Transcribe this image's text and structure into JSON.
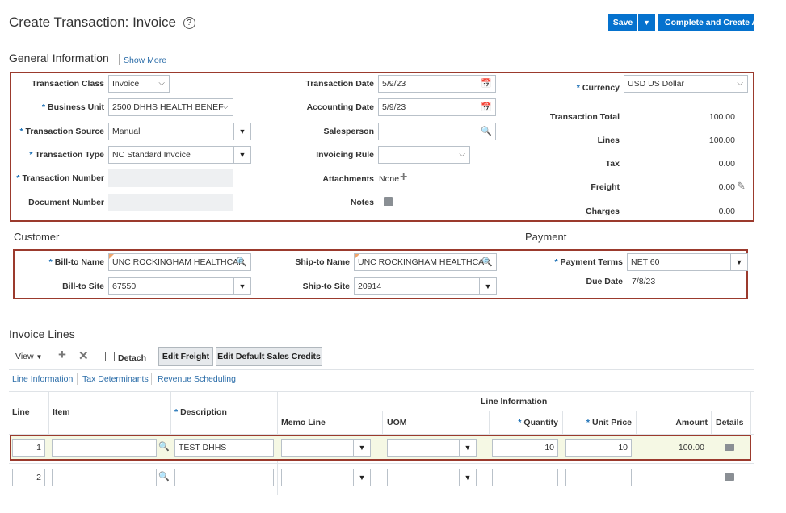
{
  "header": {
    "title": "Create Transaction: Invoice",
    "help_icon": "help-circle-icon",
    "save_label": "Save",
    "save_menu_icon": "caret-down-icon",
    "complete_label": "Complete and Create An"
  },
  "general": {
    "title": "General Information",
    "show_more": "Show More",
    "transaction_class_label": "Transaction Class",
    "transaction_class_value": "Invoice",
    "business_unit_label": "Business Unit",
    "business_unit_value": "2500 DHHS HEALTH BENEF",
    "transaction_source_label": "Transaction Source",
    "transaction_source_value": "Manual",
    "transaction_type_label": "Transaction Type",
    "transaction_type_value": "NC Standard Invoice",
    "transaction_number_label": "Transaction Number",
    "document_number_label": "Document Number",
    "transaction_date_label": "Transaction Date",
    "transaction_date_value": "5/9/23",
    "accounting_date_label": "Accounting Date",
    "accounting_date_value": "5/9/23",
    "salesperson_label": "Salesperson",
    "invoicing_rule_label": "Invoicing Rule",
    "attachments_label": "Attachments",
    "attachments_value": "None",
    "notes_label": "Notes",
    "currency_label": "Currency",
    "currency_value": "USD US Dollar",
    "totals": [
      {
        "label": "Transaction Total",
        "value": "100.00"
      },
      {
        "label": "Lines",
        "value": "100.00"
      },
      {
        "label": "Tax",
        "value": "0.00"
      },
      {
        "label": "Freight",
        "value": "0.00"
      },
      {
        "label": "Charges",
        "value": "0.00"
      }
    ]
  },
  "customer": {
    "title": "Customer",
    "bill_to_name_label": "Bill-to Name",
    "bill_to_name_value": "UNC ROCKINGHAM HEALTHCAR",
    "bill_to_site_label": "Bill-to Site",
    "bill_to_site_value": "67550",
    "ship_to_name_label": "Ship-to Name",
    "ship_to_name_value": "UNC ROCKINGHAM HEALTHCAR",
    "ship_to_site_label": "Ship-to Site",
    "ship_to_site_value": "20914"
  },
  "payment": {
    "title": "Payment",
    "payment_terms_label": "Payment Terms",
    "payment_terms_value": "NET 60",
    "due_date_label": "Due Date",
    "due_date_value": "7/8/23"
  },
  "lines": {
    "title": "Invoice Lines",
    "toolbar": {
      "view_label": "View",
      "detach_label": "Detach",
      "edit_freight_label": "Edit Freight",
      "edit_sales_credits_label": "Edit Default Sales Credits"
    },
    "tabs": [
      "Line Information",
      "Tax Determinants",
      "Revenue Scheduling"
    ],
    "group_header": "Line Information",
    "columns": {
      "line": "Line",
      "item": "Item",
      "description": "Description",
      "memo_line": "Memo Line",
      "uom": "UOM",
      "quantity": "Quantity",
      "unit_price": "Unit Price",
      "amount": "Amount",
      "details": "Details"
    },
    "rows": [
      {
        "line": "1",
        "item": "",
        "description": "TEST DHHS",
        "memo_line": "",
        "uom": "",
        "quantity": "10",
        "unit_price": "10",
        "amount": "100.00"
      },
      {
        "line": "2",
        "item": "",
        "description": "",
        "memo_line": "",
        "uom": "",
        "quantity": "",
        "unit_price": "",
        "amount": ""
      }
    ]
  },
  "colors": {
    "primary_button": "#0572ce",
    "highlight_border": "#9b3a2d",
    "link": "#2a6ca8",
    "required": "#1a6fb5"
  }
}
